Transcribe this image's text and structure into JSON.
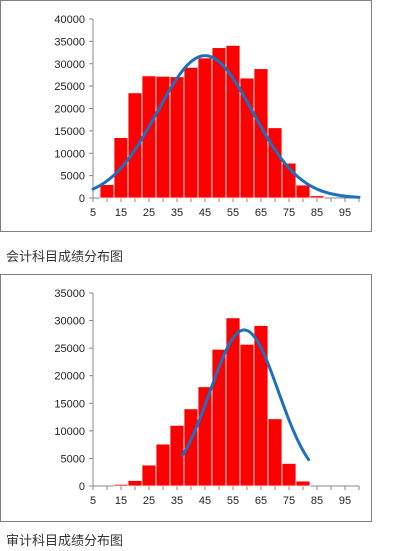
{
  "charts": [
    {
      "caption": "会计科目成绩分布图",
      "chart_data": {
        "type": "bar",
        "title": "",
        "xlabel": "",
        "ylabel": "",
        "x_tick_labels": [
          "5",
          "15",
          "25",
          "35",
          "45",
          "55",
          "65",
          "75",
          "85",
          "95"
        ],
        "bin_centers": [
          10,
          15,
          20,
          25,
          30,
          35,
          40,
          45,
          50,
          55,
          60,
          65,
          70,
          75,
          80,
          85
        ],
        "values": [
          3000,
          13500,
          23500,
          27300,
          27200,
          27100,
          29200,
          31300,
          33600,
          34100,
          26800,
          28900,
          15700,
          7800,
          2900,
          500
        ],
        "y_ticks": [
          0,
          5000,
          10000,
          15000,
          20000,
          25000,
          30000,
          35000,
          40000
        ],
        "ylim": [
          0,
          40000
        ],
        "xlim": [
          5,
          100
        ],
        "bar_color": "#ff0000",
        "curve_color": "#1f6fbf",
        "curve": {
          "type": "normal",
          "mean": 45,
          "sd": 17,
          "peak": 31800,
          "x_start": 5,
          "x_end": 100
        },
        "grid": false
      }
    },
    {
      "caption": "审计科目成绩分布图",
      "chart_data": {
        "type": "bar",
        "title": "",
        "xlabel": "",
        "ylabel": "",
        "x_tick_labels": [
          "5",
          "15",
          "25",
          "35",
          "45",
          "55",
          "65",
          "75",
          "85",
          "95"
        ],
        "bin_centers": [
          10,
          15,
          20,
          25,
          30,
          35,
          40,
          45,
          50,
          55,
          60,
          65,
          70,
          75,
          80
        ],
        "values": [
          0,
          300,
          1000,
          3800,
          7600,
          11000,
          14000,
          18000,
          24800,
          30500,
          25700,
          29100,
          12200,
          4100,
          900
        ],
        "y_ticks": [
          0,
          5000,
          10000,
          15000,
          20000,
          25000,
          30000,
          35000
        ],
        "ylim": [
          0,
          35000
        ],
        "xlim": [
          5,
          100
        ],
        "bar_color": "#ff0000",
        "curve_color": "#1f6fbf",
        "curve": {
          "type": "normal",
          "mean": 59,
          "sd": 12.2,
          "peak": 28300,
          "x_start": 37,
          "x_end": 82
        },
        "grid": false
      }
    }
  ]
}
